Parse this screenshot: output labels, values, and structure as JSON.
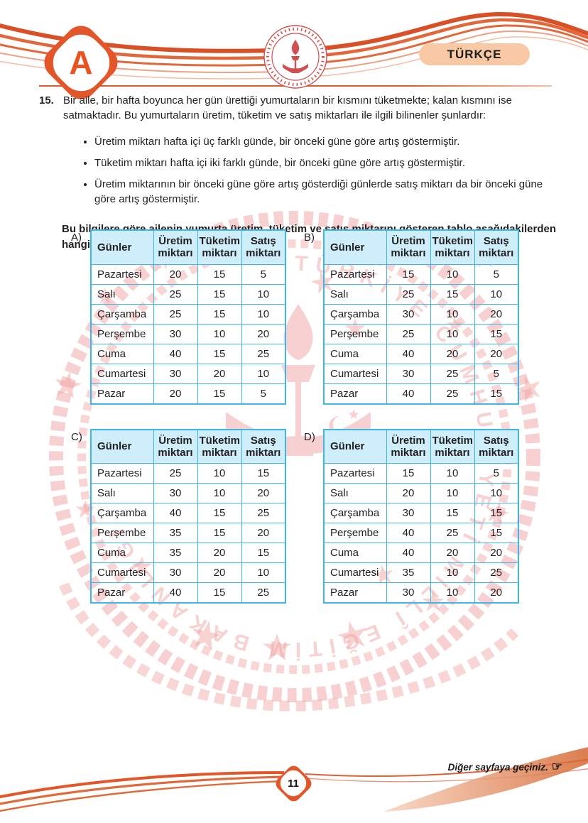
{
  "header": {
    "booklet_label": "A",
    "subject_badge": "TÜRKÇE"
  },
  "question": {
    "number": "15.",
    "intro": "Bir aile, bir hafta boyunca her gün ürettiği yumurtaların bir kısmını tüketmekte; kalan kısmını ise satmaktadır. Bu yumurtaların üretim, tüketim ve satış miktarları ile ilgili bilinenler şunlardır:",
    "bullets": [
      "Üretim miktarı hafta içi üç farklı günde, bir önceki güne göre artış göstermiştir.",
      "Tüketim miktarı hafta içi iki farklı günde, bir önceki güne göre artış göstermiştir.",
      "Üretim miktarının bir önceki güne göre artış gösterdiği günlerde satış miktarı da bir önceki güne göre artış göstermiştir."
    ],
    "prompt": "Bu bilgilere göre ailenin yumurta üretim, tüketim ve satış miktarını gösteren tablo aşağıdakilerden hangisi olabilir?"
  },
  "table_headers": [
    "Günler",
    "Üretim miktarı",
    "Tüketim miktarı",
    "Satış miktarı"
  ],
  "options": [
    {
      "label": "A)",
      "rows": [
        [
          "Pazartesi",
          "20",
          "15",
          "5"
        ],
        [
          "Salı",
          "25",
          "15",
          "10"
        ],
        [
          "Çarşamba",
          "25",
          "15",
          "10"
        ],
        [
          "Perşembe",
          "30",
          "10",
          "20"
        ],
        [
          "Cuma",
          "40",
          "15",
          "25"
        ],
        [
          "Cumartesi",
          "30",
          "20",
          "10"
        ],
        [
          "Pazar",
          "20",
          "15",
          "5"
        ]
      ]
    },
    {
      "label": "B)",
      "rows": [
        [
          "Pazartesi",
          "15",
          "10",
          "5"
        ],
        [
          "Salı",
          "25",
          "15",
          "10"
        ],
        [
          "Çarşamba",
          "30",
          "10",
          "20"
        ],
        [
          "Perşembe",
          "25",
          "10",
          "15"
        ],
        [
          "Cuma",
          "40",
          "20",
          "20"
        ],
        [
          "Cumartesi",
          "30",
          "25",
          "5"
        ],
        [
          "Pazar",
          "40",
          "25",
          "15"
        ]
      ]
    },
    {
      "label": "C)",
      "rows": [
        [
          "Pazartesi",
          "25",
          "10",
          "15"
        ],
        [
          "Salı",
          "30",
          "10",
          "20"
        ],
        [
          "Çarşamba",
          "40",
          "15",
          "25"
        ],
        [
          "Perşembe",
          "35",
          "15",
          "20"
        ],
        [
          "Cuma",
          "35",
          "20",
          "15"
        ],
        [
          "Cumartesi",
          "30",
          "20",
          "10"
        ],
        [
          "Pazar",
          "40",
          "15",
          "25"
        ]
      ]
    },
    {
      "label": "D)",
      "rows": [
        [
          "Pazartesi",
          "15",
          "10",
          "5"
        ],
        [
          "Salı",
          "20",
          "10",
          "10"
        ],
        [
          "Çarşamba",
          "30",
          "15",
          "15"
        ],
        [
          "Perşembe",
          "40",
          "25",
          "15"
        ],
        [
          "Cuma",
          "40",
          "20",
          "20"
        ],
        [
          "Cumartesi",
          "35",
          "10",
          "25"
        ],
        [
          "Pazar",
          "30",
          "10",
          "20"
        ]
      ]
    }
  ],
  "footer": {
    "page_number": "11",
    "next_page_note": "Diğer sayfaya geçiniz.",
    "hand_icon": "☞"
  },
  "watermark": {
    "seal_text": "TÜRKİYE CUMHURİYETİ MİLLÎ EĞİTİM BAKANLIĞI"
  },
  "colors": {
    "accent_orange": "#e2562a",
    "table_border": "#3fb6e8",
    "table_header_bg": "#cfeefb",
    "subject_badge_bg": "#f8c9a4",
    "watermark_pink": "#f0a3a3",
    "text": "#231f20"
  }
}
